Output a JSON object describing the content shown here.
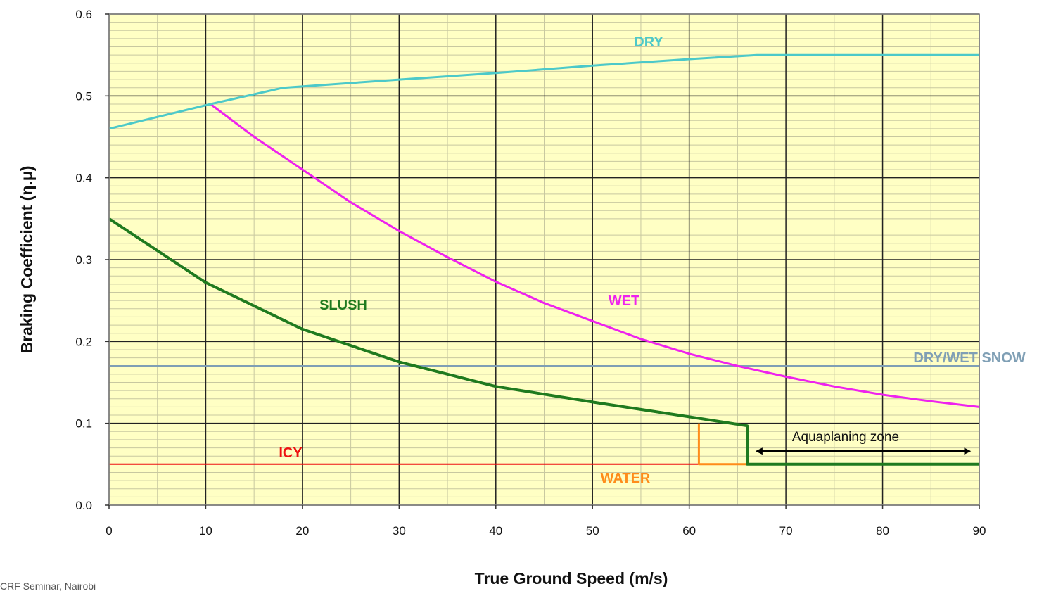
{
  "chart_data": {
    "type": "line",
    "xlabel": "True Ground Speed (m/s)",
    "ylabel": "Braking Coefficient (η.μ)",
    "xlim": [
      0,
      90
    ],
    "ylim": [
      0.0,
      0.6
    ],
    "xticks": [
      "0",
      "10",
      "20",
      "30",
      "40",
      "50",
      "60",
      "70",
      "80",
      "90"
    ],
    "yticks": [
      "0.0",
      "0.1",
      "0.2",
      "0.3",
      "0.4",
      "0.5",
      "0.6"
    ],
    "grid": true,
    "series": [
      {
        "name": "DRY",
        "color": "#4cc9c9",
        "x": [
          0,
          10.5,
          18,
          30,
          40,
          50,
          60,
          67,
          90
        ],
        "y": [
          0.46,
          0.49,
          0.51,
          0.52,
          0.528,
          0.537,
          0.545,
          0.55,
          0.55
        ]
      },
      {
        "name": "WET",
        "color": "#ee22ee",
        "x": [
          10.5,
          15,
          20,
          25,
          30,
          35,
          40,
          45,
          50,
          55,
          60,
          65,
          70,
          75,
          80,
          85,
          90
        ],
        "y": [
          0.49,
          0.45,
          0.41,
          0.37,
          0.335,
          0.303,
          0.273,
          0.247,
          0.225,
          0.203,
          0.185,
          0.17,
          0.157,
          0.145,
          0.135,
          0.127,
          0.12
        ]
      },
      {
        "name": "SLUSH",
        "color": "#1f7a1f",
        "x": [
          0,
          10,
          20,
          30,
          40,
          50,
          60,
          66,
          66,
          90
        ],
        "y": [
          0.35,
          0.272,
          0.215,
          0.175,
          0.145,
          0.126,
          0.108,
          0.097,
          0.05,
          0.05
        ]
      },
      {
        "name": "WATER",
        "color": "#ff8c1a",
        "x": [
          61,
          61,
          66
        ],
        "y": [
          0.1,
          0.05,
          0.05
        ]
      },
      {
        "name": "ICY",
        "color": "#ee1111",
        "x": [
          0,
          66
        ],
        "y": [
          0.05,
          0.05
        ]
      },
      {
        "name": "DRY/WET SNOW",
        "color": "#7f9fb5",
        "x": [
          0,
          90
        ],
        "y": [
          0.17,
          0.17
        ]
      }
    ],
    "annotations": [
      {
        "text": "Aquaplaning zone",
        "x": 67,
        "y": 0.085,
        "arrow_x": [
          67,
          89
        ]
      }
    ]
  },
  "footer_text": "CRF Seminar, Nairobi"
}
